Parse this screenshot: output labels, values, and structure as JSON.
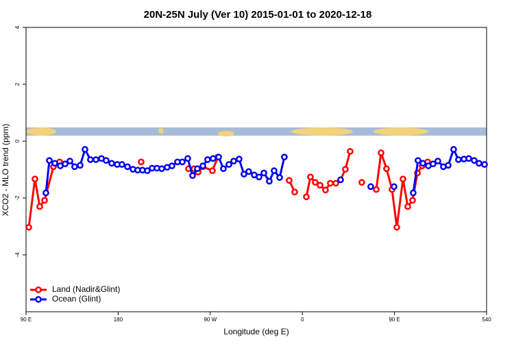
{
  "chart_data": {
    "type": "line",
    "title": "20N-25N July (Ver 10)   2015-01-01 to 2020-12-18",
    "x_label": "Longitude (deg E)",
    "y_label": "XCO2 - MLO trend (ppm)",
    "xlim": [
      90,
      540
    ],
    "xticks": [
      {
        "value": 90,
        "label": "90 E"
      },
      180,
      {
        "value": 270,
        "label": "90 W"
      },
      {
        "value": 360,
        "label": "0"
      },
      {
        "value": 450,
        "label": "90 E"
      },
      540
    ],
    "ylim": [
      -6,
      4
    ],
    "yticks": [
      -4,
      -2,
      0,
      2,
      4
    ],
    "legend": "bottom-left",
    "series": [
      {
        "name": "Land (Nadir&Glint)",
        "color": "#ff0000",
        "x": [
          92.7,
          98.7,
          103.4,
          108.1,
          116.8,
          122.8,
          null,
          202.5,
          null,
          248.7,
          254.1,
          258.1,
          262.8,
          272.1,
          277.5,
          null,
          347.1,
          352.5,
          null,
          363.9,
          367.9,
          372.6,
          377.3,
          382.6,
          387.3,
          392.7,
          397.3,
          402.0,
          406.7,
          null,
          418.1,
          null,
          432.2,
          436.9,
          442.2,
          447.6,
          452.3,
          458.3,
          463.0,
          467.7,
          472.4,
          477.1,
          482.4
        ],
        "values": [
          -3.03,
          -1.33,
          -2.3,
          -2.08,
          -0.9,
          -0.73,
          null,
          -0.73,
          null,
          -0.97,
          -0.97,
          -1.09,
          -0.9,
          -1.04,
          -0.56,
          null,
          -1.38,
          -1.79,
          null,
          -1.96,
          -1.26,
          -1.45,
          -1.55,
          -1.72,
          -1.48,
          -1.48,
          -1.36,
          -0.99,
          -0.36,
          null,
          -1.45,
          null,
          -1.7,
          -0.41,
          -0.97,
          -1.7,
          -3.03,
          -1.33,
          -2.3,
          -2.08,
          -1.12,
          -0.87,
          -0.73
        ]
      },
      {
        "name": "Ocean (Glint)",
        "color": "#0000ee",
        "x": [
          109.4,
          112.8,
          118.1,
          123.5,
          128.2,
          132.9,
          137.5,
          142.9,
          147.6,
          152.9,
          158.3,
          163.7,
          168.3,
          173.7,
          179.1,
          183.7,
          189.1,
          194.5,
          199.1,
          203.8,
          208.5,
          213.2,
          217.9,
          222.6,
          227.9,
          232.6,
          238.0,
          242.7,
          248.0,
          252.7,
          257.4,
          262.8,
          267.4,
          272.8,
          278.2,
          282.8,
          288.2,
          292.9,
          298.2,
          302.9,
          307.6,
          313.0,
          317.7,
          322.4,
          327.7,
          332.4,
          337.8,
          342.4,
          null,
          397.3,
          null,
          426.8,
          null,
          449.6,
          null,
          468.3,
          473.0,
          477.7,
          483.1,
          487.7,
          492.4,
          497.8,
          502.5,
          507.8,
          512.5,
          517.9,
          522.6,
          527.9,
          532.6,
          538.0
        ],
        "values": [
          -1.82,
          -0.68,
          -0.78,
          -0.87,
          -0.8,
          -0.7,
          -0.9,
          -0.85,
          -0.29,
          -0.65,
          -0.65,
          -0.61,
          -0.68,
          -0.78,
          -0.82,
          -0.82,
          -0.9,
          -0.99,
          -1.02,
          -1.02,
          -1.04,
          -0.95,
          -0.95,
          -0.97,
          -0.92,
          -0.87,
          -0.73,
          -0.73,
          -0.61,
          -1.21,
          -0.97,
          -0.87,
          -0.65,
          -0.61,
          -0.56,
          -0.97,
          -0.82,
          -0.7,
          -0.63,
          -1.16,
          -1.07,
          -1.19,
          -1.26,
          -1.12,
          -1.41,
          -1.04,
          -1.28,
          -0.56,
          null,
          -1.36,
          null,
          -1.6,
          null,
          -1.6,
          null,
          -1.82,
          -0.68,
          -0.78,
          -0.87,
          -0.8,
          -0.7,
          -0.9,
          -0.85,
          -0.29,
          -0.65,
          -0.63,
          -0.61,
          -0.68,
          -0.78,
          -0.82
        ]
      }
    ]
  }
}
